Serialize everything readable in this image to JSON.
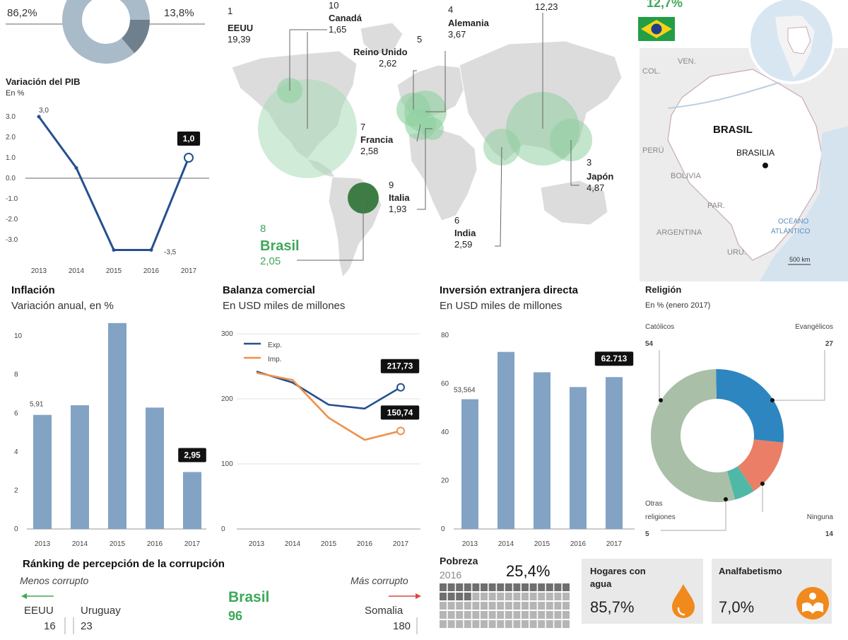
{
  "top_donut": {
    "left_value": "86,2%",
    "right_value": "13,8%",
    "colors": [
      "#a9bac9",
      "#6f7f8d"
    ]
  },
  "pib": {
    "title": "Variación del PIB",
    "unit": "En %",
    "years": [
      "2013",
      "2014",
      "2015",
      "2016",
      "2017"
    ],
    "values": [
      3.0,
      0.5,
      -3.5,
      -3.5,
      1.0
    ],
    "yticks": [
      "3.0",
      "2.0",
      "1.0",
      "0.0",
      "-1.0",
      "-2.0",
      "-3.0"
    ],
    "label_first": "3,0",
    "label_low": "-3,5",
    "label_last": "1,0"
  },
  "map": {
    "countries": [
      {
        "rank": "1",
        "name": "EEUU",
        "value": "19,39"
      },
      {
        "rank": "10",
        "name": "Canadá",
        "value": "1,65"
      },
      {
        "rank": "5",
        "name": "Reino Unido",
        "value": "2,62"
      },
      {
        "rank": "4",
        "name": "Alemania",
        "value": "3,67"
      },
      {
        "rank": "",
        "name": "",
        "value": "12,23"
      },
      {
        "rank": "7",
        "name": "Francia",
        "value": "2,58"
      },
      {
        "rank": "9",
        "name": "Italia",
        "value": "1,93"
      },
      {
        "rank": "6",
        "name": "India",
        "value": "2,59"
      },
      {
        "rank": "3",
        "name": "Japón",
        "value": "4,87"
      }
    ],
    "brasil": {
      "rank": "8",
      "name": "Brasil",
      "value": "2,05"
    }
  },
  "brazil_map": {
    "top_value": "12,7%",
    "title": "BRASIL",
    "capital": "BRASILIA",
    "neighbors": [
      "COL.",
      "VEN.",
      "PERÚ",
      "BOLIVIA",
      "PAR.",
      "ARGENTINA",
      "URU."
    ],
    "ocean": [
      "OCÉANO",
      "ATLÁNTICO"
    ],
    "scale": "500 km"
  },
  "chart_data": [
    {
      "type": "line",
      "title": "Variación del PIB",
      "ylabel": "En %",
      "x": [
        "2013",
        "2014",
        "2015",
        "2016",
        "2017"
      ],
      "series": [
        {
          "values": [
            3.0,
            0.5,
            -3.5,
            -3.5,
            1.0
          ]
        }
      ],
      "ylim": [
        -3.5,
        3.2
      ]
    },
    {
      "type": "bar",
      "title": "Inflación",
      "subtitle": "Variación anual, en %",
      "categories": [
        "2013",
        "2014",
        "2015",
        "2016",
        "2017"
      ],
      "values": [
        5.91,
        6.41,
        10.67,
        6.29,
        2.95
      ],
      "ylim": [
        0,
        10.7
      ],
      "yticks": [
        "0",
        "2",
        "4",
        "6",
        "8",
        "10"
      ],
      "label_first": "5,91",
      "label_last": "2,95"
    },
    {
      "type": "line",
      "title": "Balanza comercial",
      "subtitle": "En USD miles de millones",
      "x": [
        "2013",
        "2014",
        "2015",
        "2016",
        "2017"
      ],
      "series": [
        {
          "name": "Exp.",
          "color": "#24508f",
          "values": [
            242.0,
            225.0,
            191.0,
            185.0,
            217.73
          ]
        },
        {
          "name": "Imp.",
          "color": "#f0904a",
          "values": [
            240.0,
            229.0,
            171.0,
            137.0,
            150.74
          ]
        }
      ],
      "ylim": [
        0,
        300
      ],
      "yticks": [
        "0",
        "100",
        "200",
        "300"
      ],
      "label_exp": "217,73",
      "label_imp": "150,74"
    },
    {
      "type": "bar",
      "title": "Inversión extranjera directa",
      "subtitle": "En USD miles de millones",
      "categories": [
        "2013",
        "2014",
        "2015",
        "2016",
        "2017"
      ],
      "values": [
        53.564,
        73.1,
        64.7,
        58.6,
        62.713
      ],
      "ylim": [
        0,
        80
      ],
      "yticks": [
        "0",
        "20",
        "40",
        "60",
        "80"
      ],
      "label_first": "53,564",
      "label_last": "62.713"
    },
    {
      "type": "pie",
      "title": "Religión",
      "subtitle": "En % (enero 2017)",
      "slices": [
        {
          "name": "Católicos",
          "value": 54,
          "color": "#a9bfa7"
        },
        {
          "name": "Evangélicos",
          "value": 27,
          "color": "#2e86c1"
        },
        {
          "name": "Ninguna",
          "value": 14,
          "color": "#ea7e67"
        },
        {
          "name": "Otras religiones",
          "value": 5,
          "color": "#4fb8a7"
        }
      ],
      "label_others_1": "Otras",
      "label_others_2": "religiones"
    }
  ],
  "corrupcion": {
    "title": "Ránking de percepción de la corrupción",
    "less": "Menos corrupto",
    "more": "Más corrupto",
    "left": [
      {
        "name": "EEUU",
        "value": "16"
      },
      {
        "name": "Uruguay",
        "value": "23"
      }
    ],
    "center": {
      "name": "Brasil",
      "value": "96"
    },
    "right": {
      "name": "Somalia",
      "value": "180"
    }
  },
  "pobreza": {
    "title": "Pobreza",
    "year": "2016",
    "value": "25,4%",
    "share": 0.254
  },
  "agua": {
    "title_1": "Hogares con",
    "title_2": "agua",
    "value": "85,7%",
    "color": "#f08a1c"
  },
  "analfabetismo": {
    "title": "Analfabetismo",
    "value": "7,0%",
    "color": "#f08a1c"
  },
  "colors": {
    "green": "#3ea85a",
    "blue_bar": "#82a3c4",
    "line_blue": "#24508f",
    "label_bg": "#111111"
  }
}
